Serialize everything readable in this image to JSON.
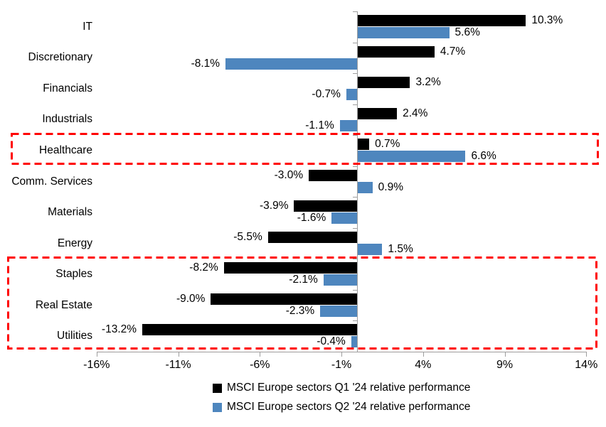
{
  "chart_data": {
    "type": "bar",
    "orientation": "horizontal",
    "title": "",
    "categories": [
      "IT",
      "Discretionary",
      "Financials",
      "Industrials",
      "Healthcare",
      "Comm. Services",
      "Materials",
      "Energy",
      "Staples",
      "Real Estate",
      "Utilities"
    ],
    "series": [
      {
        "name": "MSCI Europe sectors Q1 '24 relative performance",
        "color": "#000000",
        "values": [
          10.3,
          4.7,
          3.2,
          2.4,
          0.7,
          -3.0,
          -3.9,
          -5.5,
          -8.2,
          -9.0,
          -13.2
        ],
        "labels": [
          "10.3%",
          "4.7%",
          "3.2%",
          "2.4%",
          "0.7%",
          "-3.0%",
          "-3.9%",
          "-5.5%",
          "-8.2%",
          "-9.0%",
          "-13.2%"
        ]
      },
      {
        "name": "MSCI Europe sectors Q2 '24 relative performance",
        "color": "#4E86BE",
        "values": [
          5.6,
          -8.1,
          -0.7,
          -1.1,
          6.6,
          0.9,
          -1.6,
          1.5,
          -2.1,
          -2.3,
          -0.4
        ],
        "labels": [
          "5.6%",
          "-8.1%",
          "-0.7%",
          "-1.1%",
          "6.6%",
          "0.9%",
          "-1.6%",
          "1.5%",
          "-2.1%",
          "-2.3%",
          "-0.4%"
        ]
      }
    ],
    "x_ticks": [
      "-16%",
      "-11%",
      "-6%",
      "-1%",
      "4%",
      "9%",
      "14%"
    ],
    "x_tick_values": [
      -16,
      -11,
      -6,
      -1,
      4,
      9,
      14
    ],
    "xlim": [
      -16,
      14
    ],
    "grid": false,
    "legend_position": "bottom",
    "data_labels": "outside-end",
    "highlights": {
      "color": "#FF0000",
      "style": "dashed",
      "boxes": [
        {
          "name": "healthcare-box",
          "rows": [
            "Healthcare"
          ]
        },
        {
          "name": "defensives-box",
          "rows": [
            "Staples",
            "Real Estate",
            "Utilities"
          ]
        }
      ]
    },
    "axis_color": "#9E9E9E"
  }
}
